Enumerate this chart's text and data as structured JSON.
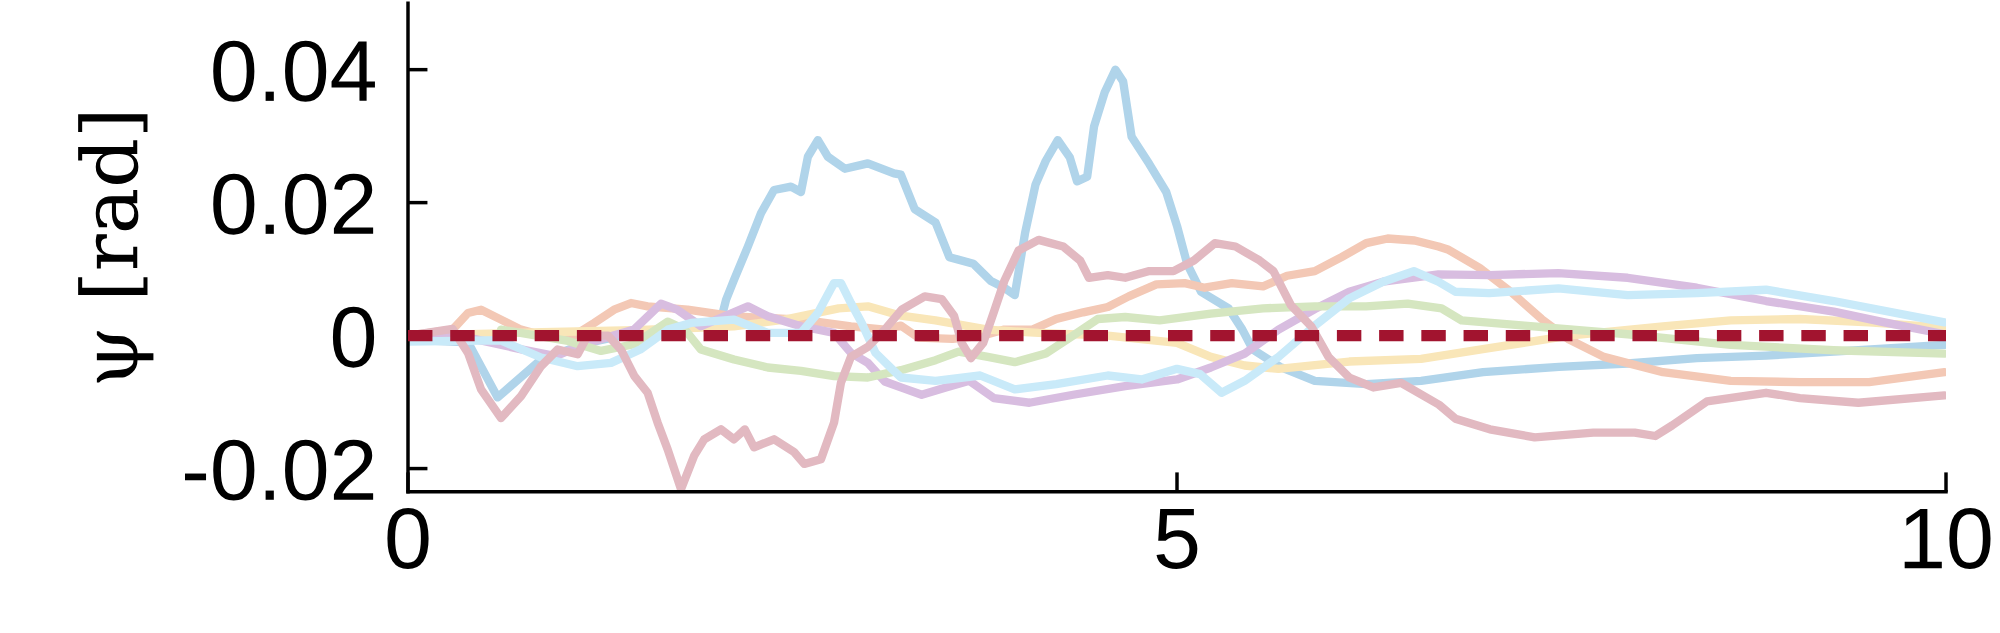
{
  "chart_data": {
    "type": "line",
    "ylabel": "ψ [rad]",
    "xlim": [
      0,
      10
    ],
    "ylim": [
      -0.0235,
      0.05
    ],
    "xticks": [
      0,
      5,
      10
    ],
    "yticks": [
      {
        "value": -0.02,
        "label": "-0.02"
      },
      0,
      0.02,
      0.04
    ],
    "grid": false,
    "legend": false,
    "line_style": "solid",
    "marker": "none",
    "ref_lines": [
      {
        "axis": "y",
        "value": 0,
        "color": "#a2142f",
        "line_style": "dashed"
      }
    ],
    "series": [
      {
        "color": "#b0d4ea",
        "x": [
          0,
          0.39,
          0.583,
          0.865,
          1.168,
          1.472,
          1.818,
          2.035,
          2.068,
          2.12,
          2.21,
          2.295,
          2.38,
          2.49,
          2.555,
          2.6,
          2.665,
          2.73,
          2.84,
          2.99,
          3.16,
          3.205,
          3.295,
          3.43,
          3.52,
          3.676,
          3.79,
          3.877,
          3.945,
          4.012,
          4.08,
          4.147,
          4.225,
          4.303,
          4.35,
          4.416,
          4.461,
          4.53,
          4.6,
          4.65,
          4.705,
          4.82,
          4.93,
          5.0,
          5.066,
          5.156,
          5.335,
          5.425,
          5.493,
          5.67,
          5.896,
          6.232,
          6.587,
          6.99,
          7.484,
          7.93,
          8.38,
          8.83,
          9.27,
          9.99
        ],
        "values": [
          -0.0006,
          -0.001,
          -0.0093,
          -0.0036,
          -0.0011,
          0.0004,
          0.0014,
          0.0024,
          0.0054,
          0.0084,
          0.0134,
          0.0184,
          0.0219,
          0.0224,
          0.0216,
          0.0269,
          0.0294,
          0.0269,
          0.0251,
          0.0259,
          0.0244,
          0.0242,
          0.019,
          0.017,
          0.0118,
          0.0108,
          0.0082,
          0.0072,
          0.0061,
          0.0154,
          0.0227,
          0.0263,
          0.0294,
          0.0268,
          0.0232,
          0.0239,
          0.0315,
          0.0366,
          0.04,
          0.0382,
          0.0299,
          0.0258,
          0.0216,
          0.0165,
          0.0108,
          0.0066,
          0.0041,
          0.0009,
          -0.0021,
          -0.0047,
          -0.0068,
          -0.0073,
          -0.0068,
          -0.0055,
          -0.0047,
          -0.0042,
          -0.0034,
          -0.003,
          -0.0024,
          -0.0014
        ]
      },
      {
        "color": "#f3c8b5",
        "x": [
          0,
          0.29,
          0.39,
          0.475,
          0.605,
          0.735,
          0.865,
          1.08,
          1.21,
          1.34,
          1.45,
          1.558,
          1.818,
          2.12,
          2.555,
          2.88,
          3.1,
          3.205,
          3.318,
          3.54,
          3.74,
          3.877,
          4.06,
          4.215,
          4.39,
          4.55,
          4.686,
          4.866,
          5.05,
          5.18,
          5.356,
          5.56,
          5.716,
          5.896,
          6.07,
          6.23,
          6.37,
          6.545,
          6.7,
          6.766,
          6.967,
          7.17,
          7.37,
          7.55,
          7.775,
          8.16,
          8.6,
          9.05,
          9.5,
          9.99
        ],
        "values": [
          0,
          0.0009,
          0.0034,
          0.0039,
          0.0024,
          0.0009,
          0.0001,
          0,
          0.0019,
          0.0039,
          0.0049,
          0.0044,
          0.0039,
          0.0029,
          0.0024,
          0.0014,
          0.0009,
          0.0015,
          -0.0003,
          -0.0005,
          0,
          0.0009,
          0.0009,
          0.0025,
          0.0035,
          0.0043,
          0.0059,
          0.0077,
          0.0079,
          0.0072,
          0.0079,
          0.0074,
          0.009,
          0.0097,
          0.0118,
          0.0139,
          0.0146,
          0.0143,
          0.0134,
          0.0129,
          0.0102,
          0.0066,
          0.0025,
          -0.0006,
          -0.0032,
          -0.0055,
          -0.0068,
          -0.007,
          -0.007,
          -0.0055
        ]
      },
      {
        "color": "#f9e6b8",
        "x": [
          0,
          0.87,
          1.47,
          2.12,
          2.45,
          2.8,
          2.99,
          3.205,
          3.43,
          3.77,
          4.1,
          4.55,
          5.0,
          5.22,
          5.44,
          5.66,
          6.12,
          6.587,
          7.03,
          7.55,
          8.16,
          8.6,
          9.05,
          9.5,
          9.99
        ],
        "values": [
          0,
          0.0005,
          0.0008,
          0.0014,
          0.0024,
          0.0041,
          0.0044,
          0.003,
          0.0023,
          0.0009,
          0.0004,
          0,
          -0.0011,
          -0.0032,
          -0.0045,
          -0.005,
          -0.0039,
          -0.0035,
          -0.0019,
          0,
          0.0014,
          0.0023,
          0.0025,
          0.002,
          0.0012
        ]
      },
      {
        "color": "#d8bde0",
        "x": [
          0,
          0.39,
          0.745,
          0.96,
          1.168,
          1.47,
          1.645,
          1.75,
          1.905,
          2.21,
          2.34,
          2.555,
          2.77,
          2.88,
          2.99,
          3.1,
          3.205,
          3.34,
          3.497,
          3.65,
          3.81,
          4.04,
          4.325,
          4.663,
          5.0,
          5.22,
          5.44,
          5.66,
          5.896,
          6.12,
          6.34,
          6.7,
          7.03,
          7.48,
          7.93,
          8.38,
          8.83,
          9.27,
          9.6,
          9.99
        ],
        "values": [
          0,
          -0.0003,
          -0.0021,
          -0.0031,
          -0.0011,
          0.0009,
          0.0048,
          0.0039,
          0.0014,
          0.0044,
          0.0029,
          0.0014,
          0.0004,
          -0.0026,
          -0.0041,
          -0.0069,
          -0.0078,
          -0.0089,
          -0.0078,
          -0.0068,
          -0.0094,
          -0.0101,
          -0.0089,
          -0.0076,
          -0.0066,
          -0.0048,
          -0.0027,
          0.0009,
          0.004,
          0.0066,
          0.0081,
          0.0092,
          0.0091,
          0.0094,
          0.0087,
          0.0072,
          0.0052,
          0.0036,
          0.002,
          0.0002
        ]
      },
      {
        "color": "#d5e6c0",
        "x": [
          0.605,
          1.04,
          1.255,
          1.47,
          1.688,
          1.8,
          1.905,
          2.12,
          2.34,
          2.555,
          2.77,
          2.99,
          3.205,
          3.43,
          3.58,
          3.77,
          3.945,
          4.147,
          4.325,
          4.485,
          4.663,
          4.887,
          5.22,
          5.56,
          5.896,
          6.23,
          6.5,
          6.72,
          6.85,
          7.26,
          7.93,
          8.6,
          9.27,
          9.99
        ],
        "values": [
          0.0009,
          -0.0008,
          -0.0023,
          -0.0013,
          0.0021,
          0.0009,
          -0.0021,
          -0.0036,
          -0.0048,
          -0.0053,
          -0.0061,
          -0.0063,
          -0.0052,
          -0.0037,
          -0.0024,
          -0.0032,
          -0.004,
          -0.0027,
          0,
          0.0025,
          0.0028,
          0.0023,
          0.0033,
          0.0041,
          0.0044,
          0.0044,
          0.0048,
          0.0041,
          0.0023,
          0.0015,
          0.0002,
          -0.0014,
          -0.0022,
          -0.0027
        ]
      },
      {
        "color": "#c9eaf9",
        "x": [
          0,
          0.6,
          0.865,
          1.103,
          1.32,
          1.51,
          1.69,
          1.84,
          2.12,
          2.34,
          2.555,
          2.665,
          2.77,
          2.815,
          2.88,
          2.95,
          3.04,
          3.15,
          3.205,
          3.43,
          3.72,
          3.945,
          4.215,
          4.55,
          4.77,
          5.0,
          5.15,
          5.29,
          5.44,
          5.66,
          5.896,
          6.12,
          6.34,
          6.54,
          6.7,
          6.81,
          7.03,
          7.48,
          7.93,
          8.38,
          8.83,
          9.27,
          9.99
        ],
        "values": [
          -0.0009,
          -0.0007,
          -0.0033,
          -0.0046,
          -0.0041,
          -0.0021,
          0.0009,
          0.0019,
          0.0024,
          0.0004,
          0.0004,
          0.0034,
          0.0079,
          0.0079,
          0.0049,
          0.0019,
          -0.0026,
          -0.0051,
          -0.0063,
          -0.0068,
          -0.006,
          -0.0081,
          -0.0073,
          -0.006,
          -0.0066,
          -0.005,
          -0.0058,
          -0.0086,
          -0.0068,
          -0.0032,
          0.0015,
          0.0056,
          0.0081,
          0.0097,
          0.0081,
          0.0066,
          0.0064,
          0.0071,
          0.0061,
          0.0064,
          0.0069,
          0.0052,
          0.002
        ]
      },
      {
        "color": "#e2b9c1",
        "x": [
          0,
          0.29,
          0.39,
          0.475,
          0.605,
          0.735,
          0.865,
          0.973,
          1.103,
          1.168,
          1.3,
          1.385,
          1.472,
          1.558,
          1.623,
          1.688,
          1.775,
          1.86,
          1.926,
          2.035,
          2.12,
          2.19,
          2.25,
          2.38,
          2.51,
          2.576,
          2.685,
          2.77,
          2.815,
          2.88,
          2.99,
          3.1,
          3.21,
          3.36,
          3.47,
          3.55,
          3.6,
          3.66,
          3.74,
          3.81,
          3.877,
          3.97,
          4.1,
          4.26,
          4.37,
          4.427,
          4.55,
          4.663,
          4.82,
          4.977,
          5.11,
          5.246,
          5.38,
          5.537,
          5.627,
          5.74,
          5.873,
          5.985,
          6.12,
          6.277,
          6.457,
          6.704,
          6.81,
          7.034,
          7.326,
          7.707,
          7.976,
          8.11,
          8.22,
          8.446,
          8.83,
          9.05,
          9.43,
          9.99
        ],
        "values": [
          0,
          0.001,
          -0.0026,
          -0.0081,
          -0.0124,
          -0.0091,
          -0.0046,
          -0.0021,
          -0.0028,
          0,
          0,
          -0.0021,
          -0.0061,
          -0.0086,
          -0.0131,
          -0.0171,
          -0.0231,
          -0.0181,
          -0.0156,
          -0.0141,
          -0.0156,
          -0.0141,
          -0.0168,
          -0.0156,
          -0.0175,
          -0.0193,
          -0.0186,
          -0.0131,
          -0.0071,
          -0.0032,
          -0.0017,
          0.0009,
          0.0039,
          0.0059,
          0.0055,
          0.003,
          -0.0011,
          -0.0034,
          -0.0011,
          0.0036,
          0.0082,
          0.0128,
          0.0144,
          0.0134,
          0.0113,
          0.0087,
          0.0091,
          0.0087,
          0.0097,
          0.0097,
          0.0113,
          0.0139,
          0.0134,
          0.0113,
          0.0097,
          0.0046,
          0.0014,
          -0.0032,
          -0.0063,
          -0.0078,
          -0.0071,
          -0.0104,
          -0.0125,
          -0.0141,
          -0.0153,
          -0.0146,
          -0.0146,
          -0.0151,
          -0.0135,
          -0.0099,
          -0.0086,
          -0.0094,
          -0.0101,
          -0.009
        ]
      }
    ]
  }
}
